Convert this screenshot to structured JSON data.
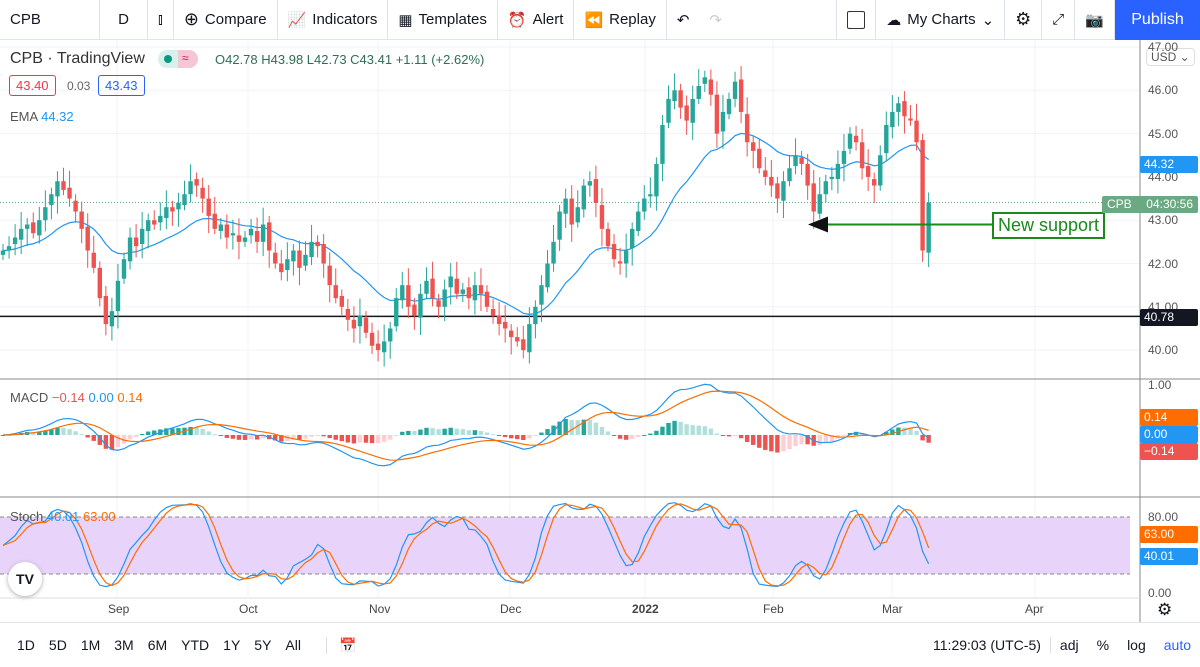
{
  "toolbar": {
    "symbol": "CPB",
    "interval": "D",
    "compare": "Compare",
    "indicators": "Indicators",
    "templates": "Templates",
    "alert": "Alert",
    "replay": "Replay",
    "my_charts": "My Charts",
    "publish": "Publish"
  },
  "legend": {
    "title": "CPB · TradingView",
    "ohlc": "O42.78 H43.98 L42.73 C43.41 +1.11 (+2.62%)",
    "bid": "43.40",
    "spread": "0.03",
    "ask": "43.43",
    "ema_label": "EMA",
    "ema_value": "44.32",
    "macd_label": "MACD",
    "macd_values": [
      "−0.14",
      "0.00",
      "0.14"
    ],
    "stoch_label": "Stoch",
    "stoch_values": [
      "40.01",
      "63.00"
    ]
  },
  "price_axis": {
    "currency": "USD",
    "ticks": [
      "47.00",
      "46.00",
      "45.00",
      "44.00",
      "43.00",
      "42.00",
      "41.00",
      "40.00"
    ],
    "ema_tag": "44.32",
    "symbol_tag": "CPB",
    "countdown": "04:30:56",
    "line_tag": "40.78",
    "macd_ticks": [
      "1.00"
    ],
    "macd_tags": [
      "0.14",
      "0.00",
      "−0.14"
    ],
    "stoch_ticks": [
      "80.00",
      "0.00"
    ],
    "stoch_tags": [
      "63.00",
      "40.01"
    ]
  },
  "time_axis": [
    "Sep",
    "Oct",
    "Nov",
    "Dec",
    "2022",
    "Feb",
    "Mar",
    "Apr"
  ],
  "annotation": "New support",
  "bottom": {
    "ranges": [
      "1D",
      "5D",
      "1M",
      "3M",
      "6M",
      "YTD",
      "1Y",
      "5Y",
      "All"
    ],
    "time": "11:29:03 (UTC-5)",
    "adj": "adj",
    "pct": "%",
    "log": "log",
    "auto": "auto"
  },
  "colors": {
    "up": "#26a69a",
    "down": "#ef5350",
    "ema": "#2196f3",
    "accent": "#2962ff",
    "support": "#1b8a1b"
  },
  "chart_data": {
    "type": "candlestick",
    "horizontal_line": 40.78,
    "support_level": 42.9,
    "ylim": [
      39.7,
      47
    ],
    "closes": [
      42.3,
      42.4,
      42.6,
      42.8,
      42.9,
      42.7,
      43.0,
      43.3,
      43.6,
      43.9,
      43.7,
      43.5,
      43.2,
      42.8,
      42.3,
      41.9,
      41.2,
      40.6,
      40.9,
      41.6,
      42.1,
      42.6,
      42.4,
      42.8,
      43.0,
      42.9,
      43.1,
      43.3,
      43.2,
      43.4,
      43.6,
      43.9,
      43.8,
      43.5,
      43.1,
      42.8,
      42.9,
      42.6,
      42.7,
      42.5,
      42.6,
      42.8,
      42.5,
      42.9,
      42.3,
      42.0,
      41.8,
      42.1,
      42.3,
      41.9,
      42.2,
      42.5,
      42.4,
      42.0,
      41.5,
      41.2,
      41.0,
      40.7,
      40.5,
      40.8,
      40.4,
      40.1,
      40.0,
      40.2,
      40.5,
      41.2,
      41.5,
      41.0,
      40.8,
      41.3,
      41.6,
      41.2,
      41.0,
      41.4,
      41.7,
      41.3,
      41.4,
      41.2,
      41.5,
      41.3,
      41.0,
      40.8,
      40.6,
      40.5,
      40.3,
      40.2,
      40.0,
      40.6,
      41.0,
      41.5,
      42.0,
      42.5,
      43.2,
      43.5,
      42.9,
      43.3,
      43.8,
      43.9,
      43.4,
      42.8,
      42.4,
      42.1,
      42.0,
      42.3,
      42.8,
      43.2,
      43.5,
      43.6,
      44.3,
      45.2,
      45.8,
      46.0,
      45.6,
      45.3,
      45.8,
      46.1,
      46.3,
      45.9,
      45.0,
      45.5,
      45.8,
      46.2,
      45.5,
      44.8,
      44.6,
      44.2,
      44.0,
      43.8,
      43.5,
      43.9,
      44.2,
      44.5,
      44.3,
      43.8,
      43.2,
      43.6,
      43.9,
      44.0,
      44.3,
      44.6,
      45.0,
      44.8,
      44.2,
      44.0,
      43.8,
      44.5,
      45.2,
      45.5,
      45.7,
      45.4,
      45.3,
      44.8,
      42.3,
      43.41
    ]
  }
}
